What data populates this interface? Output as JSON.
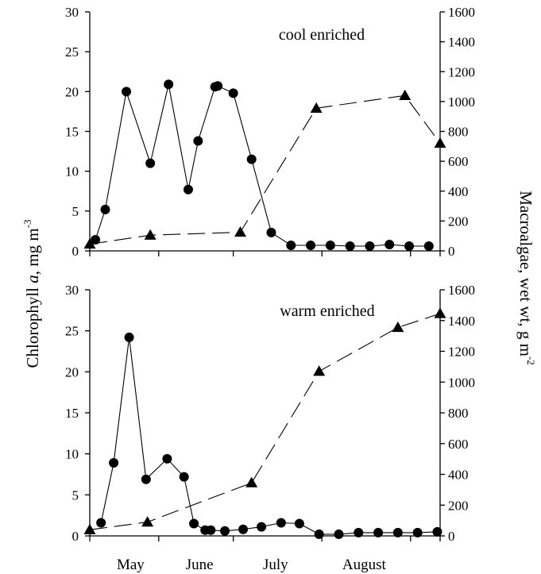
{
  "chart_data": [
    {
      "type": "line",
      "title": "cool enriched",
      "ylabel": "Chlorophyll a, mg m -3",
      "y2label": "Macroalgae, wet wt, g m -2",
      "x_categories": [
        "May",
        "June",
        "July",
        "August"
      ],
      "ylim": [
        0,
        30
      ],
      "y_ticks": [
        0,
        5,
        10,
        15,
        20,
        25,
        30
      ],
      "y2lim": [
        0,
        1600
      ],
      "y2_ticks": [
        0,
        200,
        400,
        600,
        800,
        1000,
        1200,
        1400,
        1600
      ],
      "grid": false,
      "series": [
        {
          "marker": "circle",
          "axis": "left",
          "style": "solid",
          "x": [
            4,
            11,
            26,
            43,
            56,
            70,
            77,
            89,
            91,
            102,
            115,
            129,
            143,
            157,
            171,
            185,
            199,
            213,
            227,
            241
          ],
          "y": [
            1.4,
            5.2,
            20,
            11,
            20.9,
            7.7,
            13.8,
            20.6,
            20.7,
            19.8,
            11.5,
            2.3,
            0.7,
            0.7,
            0.7,
            0.6,
            0.6,
            0.8,
            0.6,
            0.6
          ]
        },
        {
          "marker": "triangle",
          "axis": "right",
          "style": "dashed",
          "x": [
            0,
            43,
            107,
            161,
            224,
            249
          ],
          "y": [
            45,
            105,
            125,
            955,
            1040,
            720
          ]
        }
      ]
    },
    {
      "type": "line",
      "title": "warm enriched",
      "ylabel": "Chlorophyll a, mg m -3",
      "y2label": "Macroalgae, wet wt, g m -2",
      "x_categories": [
        "May",
        "June",
        "July",
        "August"
      ],
      "ylim": [
        0,
        30
      ],
      "y_ticks": [
        0,
        5,
        10,
        15,
        20,
        25,
        30
      ],
      "y2lim": [
        0,
        1600
      ],
      "y2_ticks": [
        0,
        200,
        400,
        600,
        800,
        1000,
        1200,
        1400,
        1600
      ],
      "grid": false,
      "series": [
        {
          "marker": "circle",
          "axis": "left",
          "style": "solid",
          "x": [
            8,
            17,
            28,
            40,
            55,
            67,
            74,
            82,
            86,
            96,
            109,
            122,
            136,
            149,
            163,
            177,
            191,
            205,
            219,
            233,
            247
          ],
          "y": [
            1.6,
            8.9,
            24.2,
            6.9,
            9.4,
            7.2,
            1.5,
            0.7,
            0.7,
            0.6,
            0.8,
            1.1,
            1.6,
            1.5,
            0.2,
            0.2,
            0.4,
            0.4,
            0.4,
            0.4,
            0.5
          ]
        },
        {
          "marker": "triangle",
          "axis": "right",
          "style": "dashed",
          "x": [
            0,
            41,
            115,
            163,
            219,
            249
          ],
          "y": [
            40,
            90,
            345,
            1070,
            1355,
            1445
          ]
        }
      ]
    }
  ],
  "axes": {
    "left_title_pre": "Chlorophyll ",
    "left_title_italic": "a",
    "left_title_post": ", mg m",
    "left_title_sup": "-3",
    "right_title_main": "Macroalgae, wet wt, g m",
    "right_title_sup": "-2"
  }
}
